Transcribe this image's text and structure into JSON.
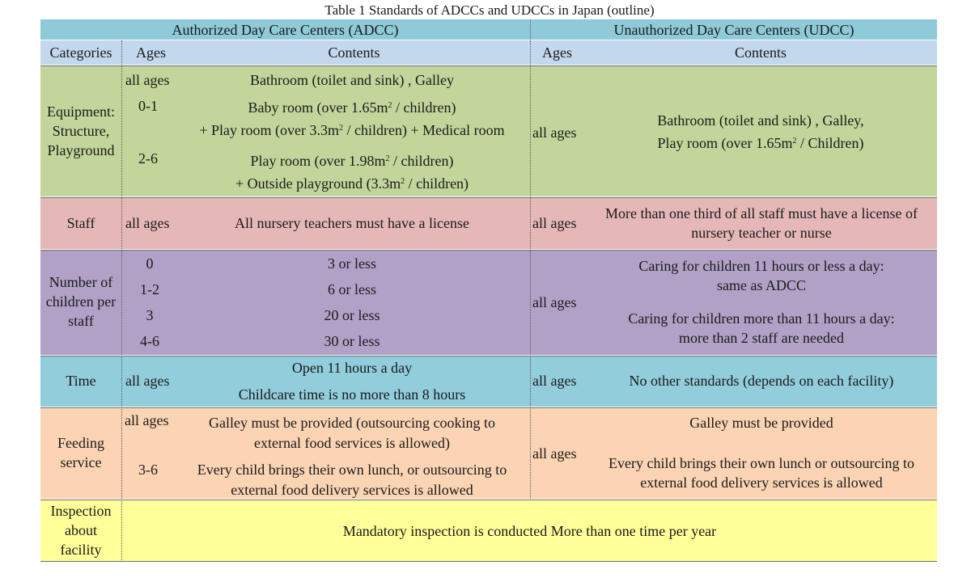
{
  "title": "Table 1  Standards of ADCCs and UDCCs in Japan (outline)",
  "header": {
    "adcc": "Authorized  Day Care Centers (ADCC)",
    "udcc": "Unauthorized Day Care Centers (UDCC)",
    "categories": "Categories",
    "ages_adcc": "Ages",
    "contents_adcc": "Contents",
    "ages_udcc": "Ages",
    "contents_udcc": "Contents"
  },
  "equipment": {
    "category": [
      "Equipment:",
      "Structure,",
      "Playground"
    ],
    "row1_age": "all ages",
    "row1_content": "Bathroom (toilet and sink) , Galley",
    "row2_age": "0-1",
    "row2_line1_a": "Baby room (over 1.65m",
    "row2_line1_sup": "2",
    "row2_line1_b": " / children)",
    "row2_line2_a": "+ Play room (over 3.3m",
    "row2_line2_sup": "2",
    "row2_line2_b": " / children) + Medical room",
    "row3_age": "2-6",
    "row3_line1_a": "Play room (over 1.98m",
    "row3_line1_sup": "2",
    "row3_line1_b": " / children)",
    "row3_line2_a": "+ Outside playground (3.3m",
    "row3_line2_sup": "2",
    "row3_line2_b": " / children)",
    "udcc_age": "all ages",
    "udcc_line1": "Bathroom (toilet and sink) , Galley,",
    "udcc_line2_a": "Play room (over 1.65m",
    "udcc_line2_sup": "2",
    "udcc_line2_b": " / Children)"
  },
  "staff": {
    "category": "Staff",
    "adcc_age": "all ages",
    "adcc_content": "All nursery teachers must have a license",
    "udcc_age": "all ages",
    "udcc_line1": "More than one third of all staff must have a license of",
    "udcc_line2": "nursery teacher or nurse"
  },
  "children": {
    "category": [
      "Number of",
      "children per",
      "staff"
    ],
    "rows": [
      {
        "age": "0",
        "content": "3 or less"
      },
      {
        "age": "1-2",
        "content": "6 or less"
      },
      {
        "age": "3",
        "content": "20 or less"
      },
      {
        "age": "4-6",
        "content": "30 or less"
      }
    ],
    "udcc_age": "all ages",
    "udcc_line1": "Caring for children 11 hours or less a day:",
    "udcc_line2": "same as ADCC",
    "udcc_line3": "Caring for children more than 11 hours a day:",
    "udcc_line4": "more than 2 staff are needed"
  },
  "time": {
    "category": "Time",
    "adcc_age": "all ages",
    "adcc_line1": "Open 11 hours a day",
    "adcc_line2": "Childcare time is no more than 8 hours",
    "udcc_age": "all ages",
    "udcc_content": "No other standards (depends on each facility)"
  },
  "feeding": {
    "category": [
      "Feeding",
      "service"
    ],
    "row1_age": "all ages",
    "row1_line1": "Galley must be provided (outsourcing cooking to",
    "row1_line2": "external food services is allowed)",
    "row2_age": "3-6",
    "row2_line1": "Every child brings their own lunch, or outsourcing to",
    "row2_line2": "external food delivery services is allowed",
    "udcc_age": "all ages",
    "udcc_line1": "Galley must be provided",
    "udcc_line2": "Every child brings their own lunch or outsourcing to",
    "udcc_line3": "external food delivery services is allowed"
  },
  "inspection": {
    "category": [
      "Inspection",
      "about",
      "facility"
    ],
    "content": "Mandatory inspection is conducted More than one time per year"
  }
}
